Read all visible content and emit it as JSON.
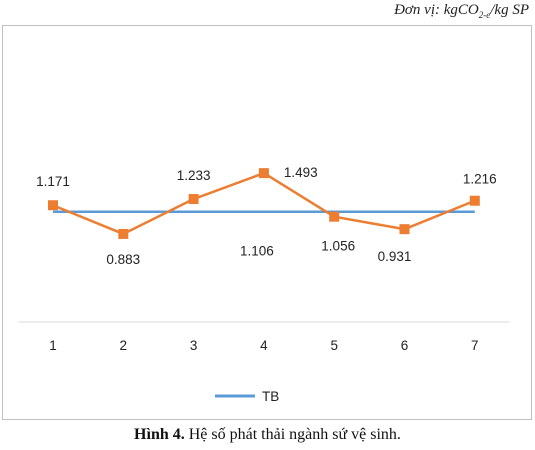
{
  "unit_label": {
    "prefix": "Đơn vị: kgCO",
    "subscript": "2-e",
    "suffix": "/kg SP"
  },
  "caption": {
    "figure": "Hình 4.",
    "text": " Hệ số phát thải ngành sứ vệ sinh."
  },
  "chart_data": {
    "type": "line",
    "categories": [
      "1",
      "2",
      "3",
      "4",
      "5",
      "6",
      "7"
    ],
    "series": [
      {
        "name": "",
        "values": [
          1.171,
          0.883,
          1.233,
          1.493,
          1.056,
          0.931,
          1.216
        ],
        "data_labels": [
          "1.171",
          "0.883",
          "1.233",
          "1.493",
          "1.056",
          "0.931",
          "1.216"
        ],
        "color": "#ed7d31",
        "marker": "square"
      },
      {
        "name": "TB",
        "values": [
          1.106,
          1.106,
          1.106,
          1.106,
          1.106,
          1.106,
          1.106
        ],
        "data_labels": [
          "1.106"
        ],
        "color": "#5b9bd5"
      }
    ],
    "title": "",
    "xlabel": "",
    "ylabel": "",
    "ylim": [
      0,
      1.8
    ],
    "grid": false,
    "legend": "bottom"
  }
}
